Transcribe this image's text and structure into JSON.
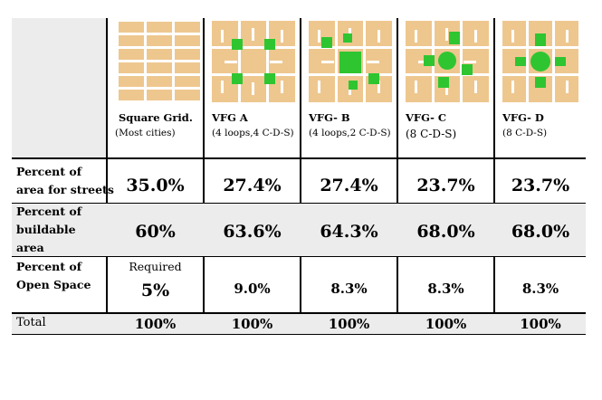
{
  "colors": {
    "block": "#eec78f",
    "green": "#2ec531",
    "row_bg": "#ececec",
    "road": "#ffffff"
  },
  "columns": [
    {
      "title": "Square Grid.",
      "subtitle": "(Most cities)",
      "icon": "square-grid-plan"
    },
    {
      "title": "VFG A",
      "subtitle": "(4 loops,4 C-D-S)",
      "icon": "vfg-a-plan"
    },
    {
      "title": "VFG-  B",
      "subtitle": "(4 loops,2 C-D-S)",
      "icon": "vfg-b-plan"
    },
    {
      "title": "VFG- C",
      "subtitle": "(8 C-D-S)",
      "icon": "vfg-c-plan"
    },
    {
      "title": "VFG- D",
      "subtitle": "(8 C-D-S)",
      "icon": "vfg-d-plan"
    }
  ],
  "rows": [
    {
      "label_line1": "Percent of",
      "label_line2": "area for streets",
      "values": [
        "35.0%",
        "27.4%",
        "27.4%",
        "23.7%",
        "23.7%"
      ]
    },
    {
      "label_line1": "Percent of",
      "label_line2": "buildable area",
      "values": [
        "60%",
        "63.6%",
        "64.3%",
        "68.0%",
        "68.0%"
      ]
    },
    {
      "label_line1": "Percent of",
      "label_line2": "Open Space",
      "note": "Required",
      "values": [
        "5%",
        "9.0%",
        "8.3%",
        "8.3%",
        "8.3%"
      ]
    },
    {
      "label_line1": "Total",
      "values": [
        "100%",
        "100%",
        "100%",
        "100%",
        "100%"
      ]
    }
  ]
}
